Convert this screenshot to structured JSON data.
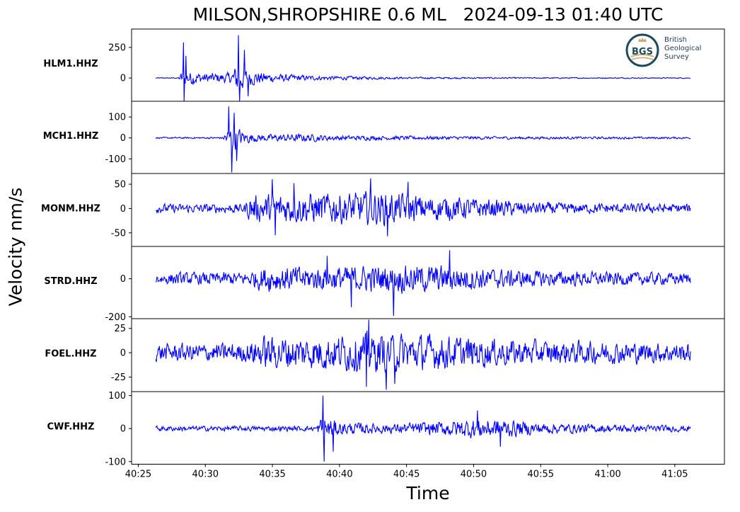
{
  "title": "MILSON,SHROPSHIRE 0.6 ML   2024-09-13 01:40 UTC",
  "ylabel": "Velocity nm/s",
  "xlabel": "Time",
  "logo": {
    "abbrev": "BGS",
    "line1": "British",
    "line2": "Geological",
    "line3": "Survey"
  },
  "colors": {
    "trace": "#0000ff",
    "axis": "#000000"
  },
  "chart_data": {
    "type": "line",
    "x_unit": "time (mm:ss)",
    "x_ticks": [
      "40:25",
      "40:30",
      "40:35",
      "40:40",
      "40:45",
      "40:50",
      "40:55",
      "41:00",
      "41:05"
    ],
    "x_range_seconds": [
      24.5,
      68.7
    ],
    "trace_time_range_seconds": [
      26.3,
      66.2
    ],
    "series": [
      {
        "name": "HLM1.HHZ",
        "ylim": [
          -190,
          400
        ],
        "y_ticks": [
          {
            "v": 250,
            "label": "250"
          },
          {
            "v": 0,
            "label": "0"
          }
        ],
        "envelope": [
          [
            26.3,
            4
          ],
          [
            28.0,
            5
          ],
          [
            28.3,
            90
          ],
          [
            28.6,
            80
          ],
          [
            30.0,
            50
          ],
          [
            32.0,
            55
          ],
          [
            32.4,
            190
          ],
          [
            33.0,
            90
          ],
          [
            35.0,
            45
          ],
          [
            38.0,
            25
          ],
          [
            45.0,
            10
          ],
          [
            55.0,
            6
          ],
          [
            66.2,
            5
          ]
        ],
        "spikes": [
          [
            28.35,
            290
          ],
          [
            28.42,
            -200
          ],
          [
            28.55,
            180
          ],
          [
            32.45,
            350
          ],
          [
            32.55,
            -190
          ],
          [
            32.9,
            230
          ],
          [
            33.2,
            -150
          ]
        ]
      },
      {
        "name": "MCH1.HHZ",
        "ylim": [
          -170,
          175
        ],
        "y_ticks": [
          {
            "v": 100,
            "label": "100"
          },
          {
            "v": 0,
            "label": "0"
          },
          {
            "v": -100,
            "label": "-100"
          }
        ],
        "envelope": [
          [
            26.3,
            4
          ],
          [
            31.3,
            6
          ],
          [
            31.6,
            60
          ],
          [
            32.1,
            80
          ],
          [
            33.0,
            35
          ],
          [
            34.0,
            20
          ],
          [
            37.0,
            25
          ],
          [
            40.0,
            15
          ],
          [
            45.0,
            12
          ],
          [
            55.0,
            8
          ],
          [
            66.2,
            6
          ]
        ],
        "spikes": [
          [
            31.75,
            150
          ],
          [
            31.95,
            -165
          ],
          [
            32.15,
            120
          ],
          [
            32.35,
            -110
          ]
        ]
      },
      {
        "name": "MONM.HHZ",
        "ylim": [
          -78,
          72
        ],
        "y_ticks": [
          {
            "v": 50,
            "label": "50"
          },
          {
            "v": 0,
            "label": "0"
          },
          {
            "v": -50,
            "label": "-50"
          }
        ],
        "envelope": [
          [
            26.3,
            12
          ],
          [
            32.9,
            12
          ],
          [
            33.3,
            35
          ],
          [
            36.0,
            40
          ],
          [
            40.0,
            42
          ],
          [
            43.0,
            45
          ],
          [
            46.0,
            35
          ],
          [
            49.0,
            30
          ],
          [
            53.0,
            20
          ],
          [
            57.0,
            14
          ],
          [
            66.2,
            12
          ]
        ],
        "spikes": [
          [
            35.0,
            60
          ],
          [
            35.2,
            -55
          ],
          [
            42.3,
            62
          ],
          [
            43.6,
            -57
          ],
          [
            36.6,
            52
          ],
          [
            45.1,
            55
          ]
        ]
      },
      {
        "name": "STRD.HHZ",
        "ylim": [
          -210,
          170
        ],
        "y_ticks": [
          {
            "v": 0,
            "label": "0"
          },
          {
            "v": -200,
            "label": "-200"
          }
        ],
        "envelope": [
          [
            26.3,
            40
          ],
          [
            33.0,
            45
          ],
          [
            34.6,
            90
          ],
          [
            38.0,
            80
          ],
          [
            42.0,
            90
          ],
          [
            46.0,
            95
          ],
          [
            49.0,
            85
          ],
          [
            53.0,
            60
          ],
          [
            57.0,
            50
          ],
          [
            66.2,
            40
          ]
        ],
        "spikes": [
          [
            44.05,
            -195
          ],
          [
            48.2,
            150
          ],
          [
            40.9,
            -150
          ],
          [
            39.1,
            120
          ]
        ]
      },
      {
        "name": "FOEL.HHZ",
        "ylim": [
          -40,
          35
        ],
        "y_ticks": [
          {
            "v": 25,
            "label": "25"
          },
          {
            "v": 0,
            "label": "0"
          },
          {
            "v": -25,
            "label": "-25"
          }
        ],
        "envelope": [
          [
            26.3,
            12
          ],
          [
            33.0,
            13
          ],
          [
            34.3,
            22
          ],
          [
            38.0,
            22
          ],
          [
            42.0,
            26
          ],
          [
            46.0,
            24
          ],
          [
            50.0,
            20
          ],
          [
            55.0,
            16
          ],
          [
            66.2,
            13
          ]
        ],
        "spikes": [
          [
            42.2,
            34
          ],
          [
            43.5,
            -38
          ],
          [
            44.1,
            -32
          ],
          [
            42.0,
            -35
          ]
        ]
      },
      {
        "name": "CWF.HHZ",
        "ylim": [
          -108,
          112
        ],
        "y_ticks": [
          {
            "v": 100,
            "label": "100"
          },
          {
            "v": 0,
            "label": "0"
          },
          {
            "v": -100,
            "label": "-100"
          }
        ],
        "envelope": [
          [
            26.3,
            10
          ],
          [
            38.3,
            10
          ],
          [
            38.7,
            55
          ],
          [
            40.0,
            25
          ],
          [
            44.0,
            18
          ],
          [
            48.0,
            30
          ],
          [
            50.0,
            40
          ],
          [
            52.0,
            38
          ],
          [
            55.0,
            22
          ],
          [
            60.0,
            15
          ],
          [
            66.2,
            12
          ]
        ],
        "spikes": [
          [
            38.75,
            100
          ],
          [
            38.85,
            -100
          ],
          [
            39.55,
            -70
          ],
          [
            52.0,
            -55
          ],
          [
            50.3,
            55
          ]
        ]
      }
    ]
  }
}
